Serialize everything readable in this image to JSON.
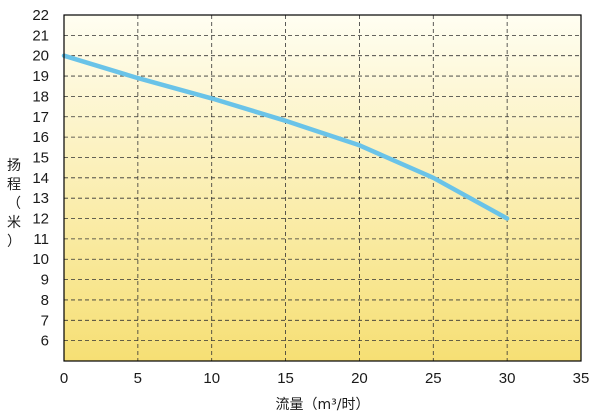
{
  "chart_data": {
    "type": "line",
    "title": "",
    "xlabel": "流量（m³/时）",
    "ylabel_chars": [
      "扬",
      "程",
      "（",
      "米",
      "）"
    ],
    "xlim": [
      0,
      35
    ],
    "ylim": [
      5,
      22
    ],
    "x_ticks": [
      "0",
      "5",
      "10",
      "15",
      "20",
      "25",
      "30",
      "35"
    ],
    "y_ticks": [
      "6",
      "7",
      "8",
      "9",
      "10",
      "11",
      "12",
      "13",
      "14",
      "15",
      "16",
      "17",
      "18",
      "19",
      "20",
      "21",
      "22"
    ],
    "grid": true,
    "background": {
      "top": "#fffef2",
      "bottom": "#f6df74"
    },
    "series": [
      {
        "color": "#6ac3e8",
        "x": [
          0,
          5,
          10,
          15,
          20,
          25,
          30
        ],
        "y": [
          20,
          18.9,
          17.9,
          16.8,
          15.6,
          14.0,
          12.0
        ]
      }
    ]
  }
}
